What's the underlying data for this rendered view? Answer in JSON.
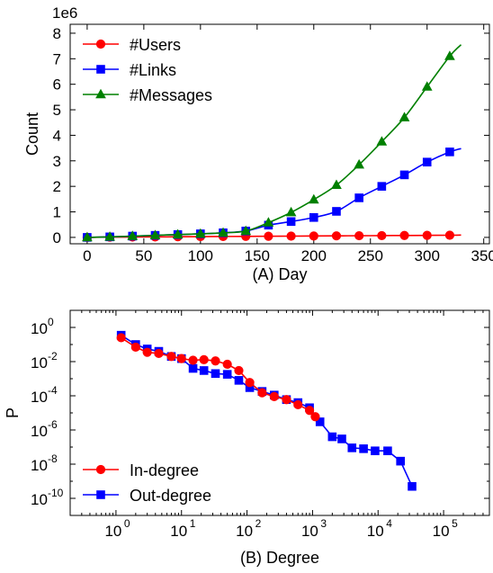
{
  "chart_data": [
    {
      "type": "line",
      "xlabel": "(A) Day",
      "ylabel": "Count",
      "offset_label": "1e6",
      "xlim": [
        -15,
        355
      ],
      "ylim": [
        -0.25,
        8.35
      ],
      "xticks": [
        0,
        50,
        100,
        150,
        200,
        250,
        300,
        350
      ],
      "yticks": [
        0,
        1,
        2,
        3,
        4,
        5,
        6,
        7,
        8
      ],
      "legend_position": "top-left",
      "series": [
        {
          "name": "#Users",
          "color": "#ff0000",
          "marker": "circle",
          "x": [
            0,
            20,
            40,
            60,
            80,
            100,
            120,
            140,
            160,
            180,
            200,
            220,
            240,
            260,
            280,
            300,
            320
          ],
          "y": [
            0,
            0.01,
            0.015,
            0.02,
            0.025,
            0.03,
            0.035,
            0.04,
            0.045,
            0.05,
            0.055,
            0.06,
            0.065,
            0.07,
            0.075,
            0.08,
            0.085
          ],
          "line_end": [
            330,
            0.09
          ]
        },
        {
          "name": "#Links",
          "color": "#0000ff",
          "marker": "square",
          "x": [
            0,
            20,
            40,
            60,
            80,
            100,
            120,
            140,
            160,
            180,
            200,
            220,
            240,
            260,
            280,
            300,
            320
          ],
          "y": [
            0,
            0.02,
            0.05,
            0.08,
            0.11,
            0.14,
            0.18,
            0.25,
            0.48,
            0.62,
            0.78,
            1.02,
            1.55,
            2.0,
            2.45,
            2.95,
            3.35
          ],
          "line_end": [
            330,
            3.48
          ]
        },
        {
          "name": "#Messages",
          "color": "#008000",
          "marker": "triangle",
          "x": [
            0,
            20,
            40,
            60,
            80,
            100,
            120,
            140,
            160,
            180,
            200,
            220,
            240,
            260,
            280,
            300,
            320
          ],
          "y": [
            0,
            0.02,
            0.05,
            0.08,
            0.11,
            0.14,
            0.18,
            0.25,
            0.58,
            0.98,
            1.48,
            2.05,
            2.85,
            3.75,
            4.7,
            5.9,
            7.1
          ],
          "line_end": [
            330,
            7.55
          ]
        }
      ]
    },
    {
      "type": "line",
      "xlabel": "(B) Degree",
      "ylabel": "P",
      "xscale": "log",
      "yscale": "log",
      "xlim": [
        0.2,
        500000
      ],
      "ylim": [
        1e-11,
        10
      ],
      "xticks": [
        1,
        10,
        100,
        1000,
        10000,
        100000
      ],
      "xtick_exponents": [
        "0",
        "1",
        "2",
        "3",
        "4",
        "5"
      ],
      "yticks": [
        1,
        0.01,
        0.0001,
        1e-06,
        1e-08,
        1e-10
      ],
      "ytick_exponents": [
        "0",
        "-2",
        "-4",
        "-6",
        "-8",
        "-10"
      ],
      "tick_base": "10",
      "legend_position": "bottom-left",
      "series": [
        {
          "name": "In-degree",
          "color": "#ff0000",
          "marker": "circle",
          "x": [
            1.2,
            2,
            3,
            4.5,
            7,
            10,
            15,
            22,
            33,
            50,
            75,
            110,
            170,
            260,
            400,
            600,
            900,
            1100
          ],
          "y": [
            0.25,
            0.07,
            0.035,
            0.03,
            0.02,
            0.015,
            0.012,
            0.013,
            0.011,
            0.007,
            0.003,
            0.0006,
            0.00015,
            9e-05,
            6e-05,
            3e-05,
            1.4e-05,
            6e-06
          ]
        },
        {
          "name": "Out-degree",
          "color": "#0000ff",
          "marker": "square",
          "x": [
            1.2,
            2,
            3,
            4.5,
            7,
            10,
            15,
            22,
            33,
            50,
            75,
            110,
            170,
            260,
            400,
            600,
            900,
            1300,
            2000,
            2800,
            4000,
            6000,
            9000,
            14000,
            22000,
            33000
          ],
          "y": [
            0.35,
            0.1,
            0.055,
            0.04,
            0.02,
            0.015,
            0.004,
            0.003,
            0.002,
            0.0018,
            0.0008,
            0.0003,
            0.00018,
            0.00011,
            6e-05,
            4e-05,
            2e-05,
            3e-06,
            4e-07,
            3e-07,
            9e-08,
            8e-08,
            6e-08,
            6e-08,
            1.5e-08,
            5e-10
          ]
        }
      ]
    }
  ]
}
